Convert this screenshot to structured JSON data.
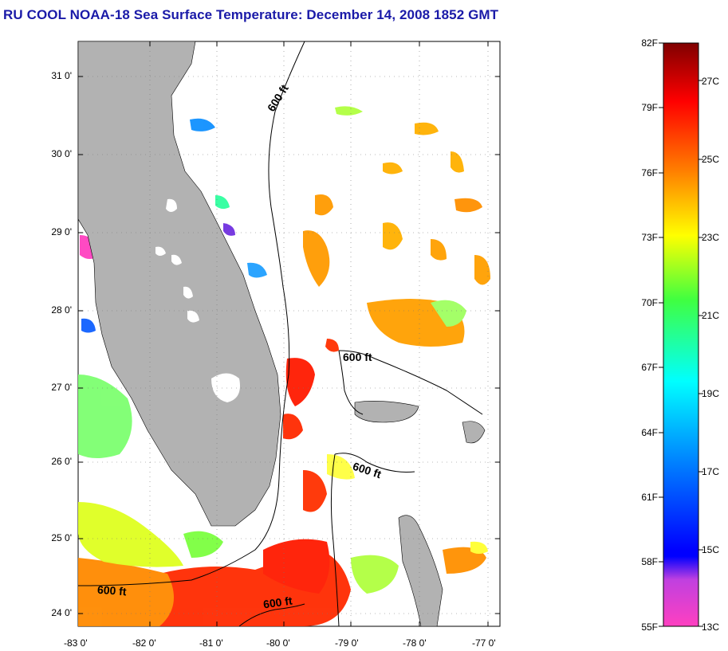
{
  "title": "RU COOL  NOAA-18  Sea Surface Temperature:  December 14, 2008 1852 GMT",
  "map": {
    "lat_labels": [
      "31 0'",
      "30 0'",
      "29 0'",
      "28 0'",
      "27 0'",
      "26 0'",
      "25 0'",
      "24 0'"
    ],
    "lon_labels": [
      "-83 0'",
      "-82 0'",
      "-81 0'",
      "-80 0'",
      "-79 0'",
      "-78 0'",
      "-77 0'"
    ],
    "contour_labels": [
      "600 ft",
      "600 ft",
      "600 ft",
      "600 ft",
      "600 ft"
    ],
    "land_color": "#b2b2b2"
  },
  "colorbar": {
    "fahrenheit_labels": [
      "82F",
      "79F",
      "76F",
      "73F",
      "70F",
      "67F",
      "64F",
      "61F",
      "58F",
      "55F"
    ],
    "celsius_labels": [
      "27C",
      "25C",
      "23C",
      "21C",
      "19C",
      "17C",
      "15C",
      "13C"
    ],
    "colors": [
      "#8b0000",
      "#ff0000",
      "#ff8000",
      "#ffff00",
      "#40ff40",
      "#00ffff",
      "#0080ff",
      "#0000ff",
      "#a020f0",
      "#ff40c0"
    ]
  }
}
